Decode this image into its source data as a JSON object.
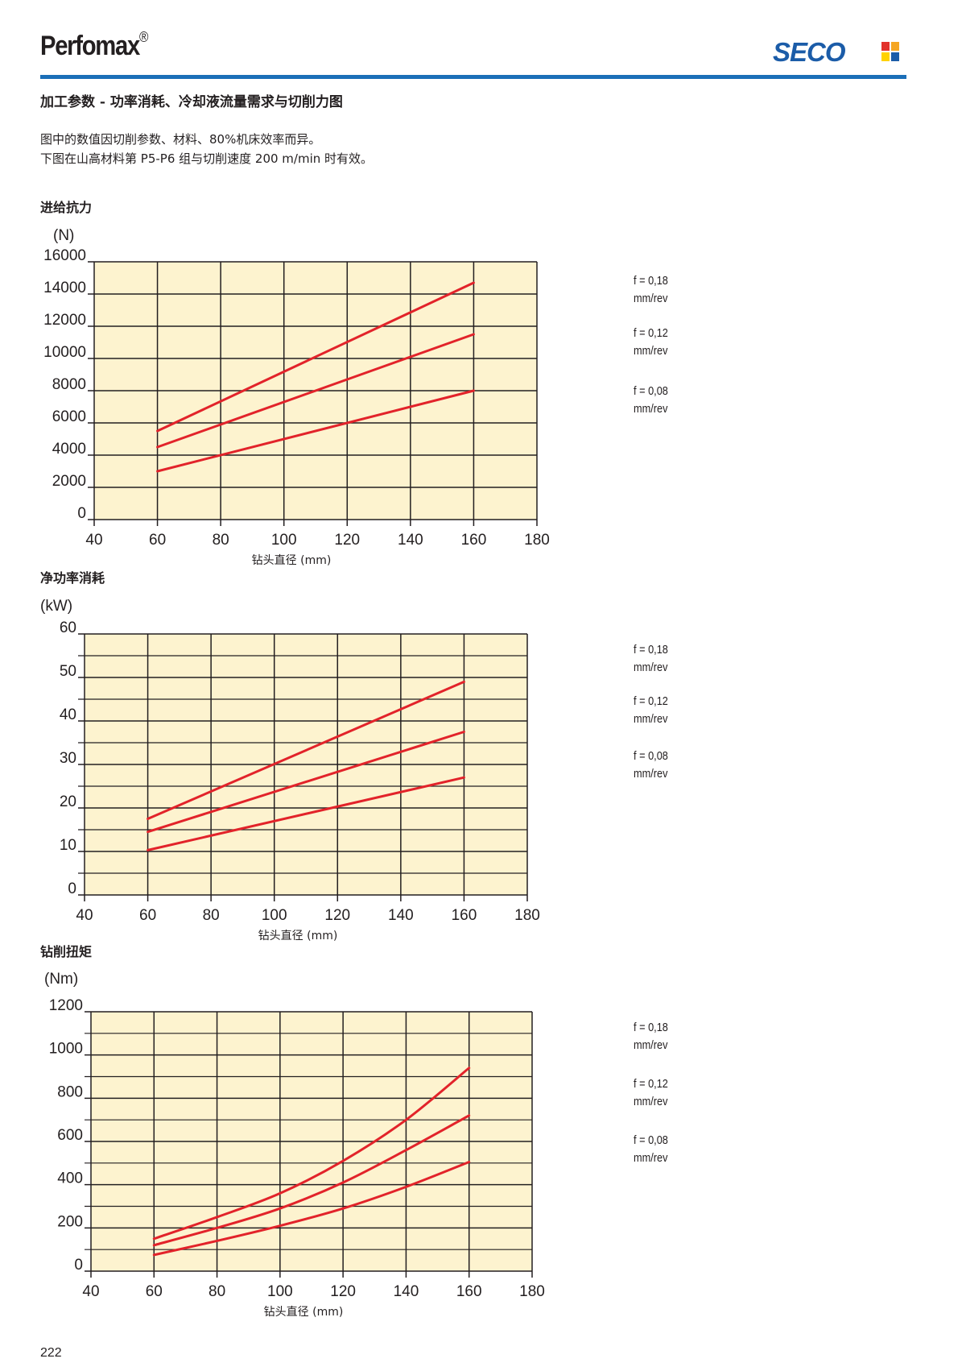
{
  "header": {
    "brand": "Perfomax",
    "brand_mark": "®",
    "logo_text": "SECO",
    "logo_squares_colors": [
      "#e2322b",
      "#f5a623",
      "#ffd200",
      "#1b5ca8"
    ],
    "rule_color": "#1b6fb8"
  },
  "section_title": "加工参数 - 功率消耗、冷却液流量需求与切削力图",
  "intro": {
    "line1": "图中的数值因切削参数、材料、80%机床效率而异。",
    "line2": "下图在山高材料第 P5-P6 组与切削速度 200 m/min 时有效。"
  },
  "colors": {
    "plot_bg": "#fdf3cf",
    "grid": "#231f20",
    "series": "#e2232a"
  },
  "chart_data": [
    {
      "type": "line",
      "title": "进给抗力",
      "ylabel": "(N)",
      "xlabel": "钻头直径 (mm)",
      "xlim": [
        40,
        180
      ],
      "ylim": [
        0,
        16000
      ],
      "xticks": [
        "40",
        "60",
        "80",
        "100",
        "120",
        "140",
        "160",
        "180"
      ],
      "yticks": [
        "0",
        "2000",
        "4000",
        "6000",
        "8000",
        "10000",
        "12000",
        "14000",
        "16000"
      ],
      "grid": true,
      "legend": [
        "f = 0,18",
        "mm/rev",
        "f = 0,12",
        "mm/rev",
        "f = 0,08",
        "mm/rev"
      ],
      "series": [
        {
          "name": "f = 0,18 mm/rev",
          "points": [
            [
              60,
              5500
            ],
            [
              160,
              14700
            ]
          ]
        },
        {
          "name": "f = 0,12 mm/rev",
          "points": [
            [
              60,
              4500
            ],
            [
              160,
              11500
            ]
          ]
        },
        {
          "name": "f = 0,08 mm/rev",
          "points": [
            [
              60,
              3000
            ],
            [
              160,
              8000
            ]
          ]
        }
      ]
    },
    {
      "type": "line",
      "title": "净功率消耗",
      "ylabel": "(kW)",
      "xlabel": "钻头直径 (mm)",
      "xlim": [
        40,
        180
      ],
      "ylim": [
        0,
        60
      ],
      "xticks": [
        "40",
        "60",
        "80",
        "100",
        "120",
        "140",
        "160",
        "180"
      ],
      "yticks": [
        "0",
        "10",
        "20",
        "30",
        "40",
        "50",
        "60"
      ],
      "grid": true,
      "legend": [
        "f = 0,18",
        "mm/rev",
        "f = 0,12",
        "mm/rev",
        "f = 0,08",
        "mm/rev"
      ],
      "series": [
        {
          "name": "f = 0,18 mm/rev",
          "points": [
            [
              60,
              17.5
            ],
            [
              160,
              49
            ]
          ]
        },
        {
          "name": "f = 0,12 mm/rev",
          "points": [
            [
              60,
              14.5
            ],
            [
              160,
              37.5
            ]
          ]
        },
        {
          "name": "f = 0,08 mm/rev",
          "points": [
            [
              60,
              10.3
            ],
            [
              160,
              27
            ]
          ]
        }
      ]
    },
    {
      "type": "line",
      "title": "钻削扭矩",
      "ylabel": "(Nm)",
      "xlabel": "钻头直径 (mm)",
      "xlim": [
        40,
        180
      ],
      "ylim": [
        0,
        1200
      ],
      "xticks": [
        "40",
        "60",
        "80",
        "100",
        "120",
        "140",
        "160",
        "180"
      ],
      "yticks": [
        "0",
        "200",
        "400",
        "600",
        "800",
        "1000",
        "1200"
      ],
      "grid": true,
      "legend": [
        "f = 0,18",
        "mm/rev",
        "f = 0,12",
        "mm/rev",
        "f = 0,08",
        "mm/rev"
      ],
      "series": [
        {
          "name": "f = 0,18 mm/rev",
          "points": [
            [
              60,
              150
            ],
            [
              80,
              250
            ],
            [
              100,
              360
            ],
            [
              120,
              510
            ],
            [
              140,
              700
            ],
            [
              160,
              940
            ]
          ]
        },
        {
          "name": "f = 0,12 mm/rev",
          "points": [
            [
              60,
              120
            ],
            [
              80,
              200
            ],
            [
              100,
              290
            ],
            [
              120,
              410
            ],
            [
              140,
              560
            ],
            [
              160,
              720
            ]
          ]
        },
        {
          "name": "f = 0,08 mm/rev",
          "points": [
            [
              60,
              75
            ],
            [
              80,
              140
            ],
            [
              100,
              210
            ],
            [
              120,
              290
            ],
            [
              140,
              390
            ],
            [
              160,
              505
            ]
          ]
        }
      ]
    }
  ],
  "page_number": "222"
}
